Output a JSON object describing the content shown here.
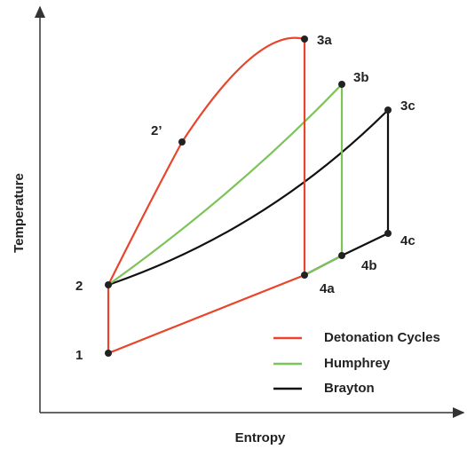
{
  "axes": {
    "x_label": "Entropy",
    "y_label": "Temperature"
  },
  "points": [
    {
      "label": "1"
    },
    {
      "label": "2"
    },
    {
      "label": "2’"
    },
    {
      "label": "3a"
    },
    {
      "label": "3b"
    },
    {
      "label": "3c"
    },
    {
      "label": "4a"
    },
    {
      "label": "4b"
    },
    {
      "label": "4c"
    }
  ],
  "legend": [
    {
      "label": "Detonation Cycles",
      "color": "#e8452c"
    },
    {
      "label": "Humphrey",
      "color": "#7dc35a"
    },
    {
      "label": "Brayton",
      "color": "#111111"
    }
  ]
}
